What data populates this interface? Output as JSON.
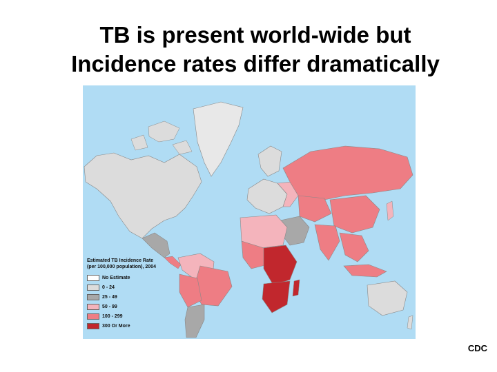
{
  "slide": {
    "title_line1": "TB is present world-wide but",
    "title_line2": "Incidence rates differ dramatically",
    "credit": "CDC"
  },
  "map": {
    "legend_title_line1": "Estimated TB Incidence Rate",
    "legend_title_line2": "(per 100,000 population), 2004",
    "categories": [
      {
        "label": "No Estimate",
        "color": "#ffffff"
      },
      {
        "label": "0 - 24",
        "color": "#dcdcdc"
      },
      {
        "label": "25 - 49",
        "color": "#a8a8a8"
      },
      {
        "label": "50 - 99",
        "color": "#f4b4bc"
      },
      {
        "label": "100 - 299",
        "color": "#ee7d84"
      },
      {
        "label": "300 Or More",
        "color": "#c1272d"
      }
    ],
    "ocean_color": "#b0dcf4"
  }
}
